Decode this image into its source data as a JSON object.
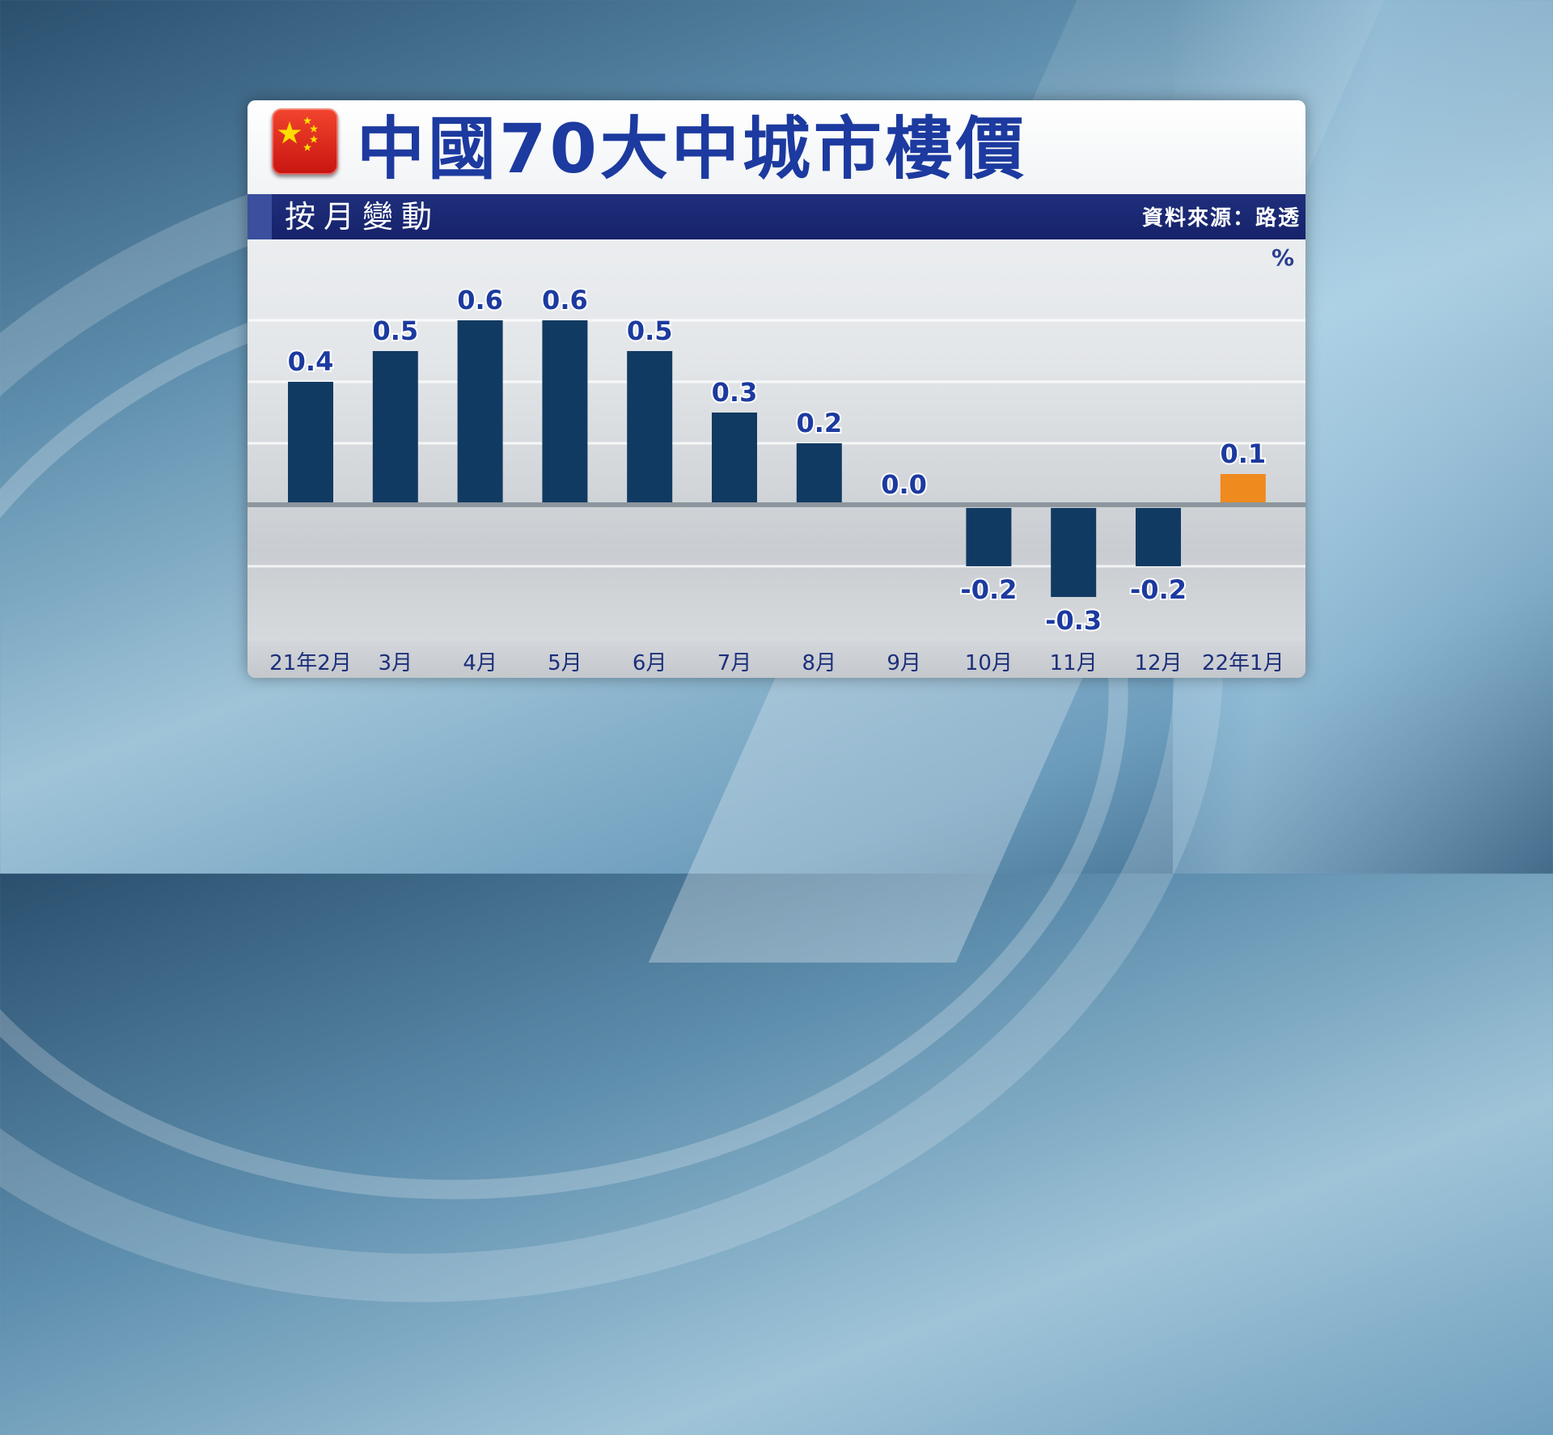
{
  "title": "中國70大中城市樓價",
  "subtitle": "按月變動",
  "source": "資料來源：路透",
  "colors": {
    "bar": "#113a63",
    "highlight": "#ef8a1e",
    "title": "#1c3a9f",
    "sub_bar": "#1f2f7c",
    "label": "#1c3a9f"
  },
  "chart_data": {
    "type": "bar",
    "categories": [
      "21年2月",
      "3月",
      "4月",
      "5月",
      "6月",
      "7月",
      "8月",
      "9月",
      "10月",
      "11月",
      "12月",
      "22年1月"
    ],
    "values": [
      0.4,
      0.5,
      0.6,
      0.6,
      0.5,
      0.3,
      0.2,
      0.0,
      -0.2,
      -0.3,
      -0.2,
      0.1
    ],
    "value_labels": [
      "0.4",
      "0.5",
      "0.6",
      "0.6",
      "0.5",
      "0.3",
      "0.2",
      "0.0",
      "-0.2",
      "-0.3",
      "-0.2",
      "0.1"
    ],
    "highlight_index": 11,
    "unit": "%",
    "ylim": [
      -0.45,
      0.8
    ],
    "grid": true
  }
}
